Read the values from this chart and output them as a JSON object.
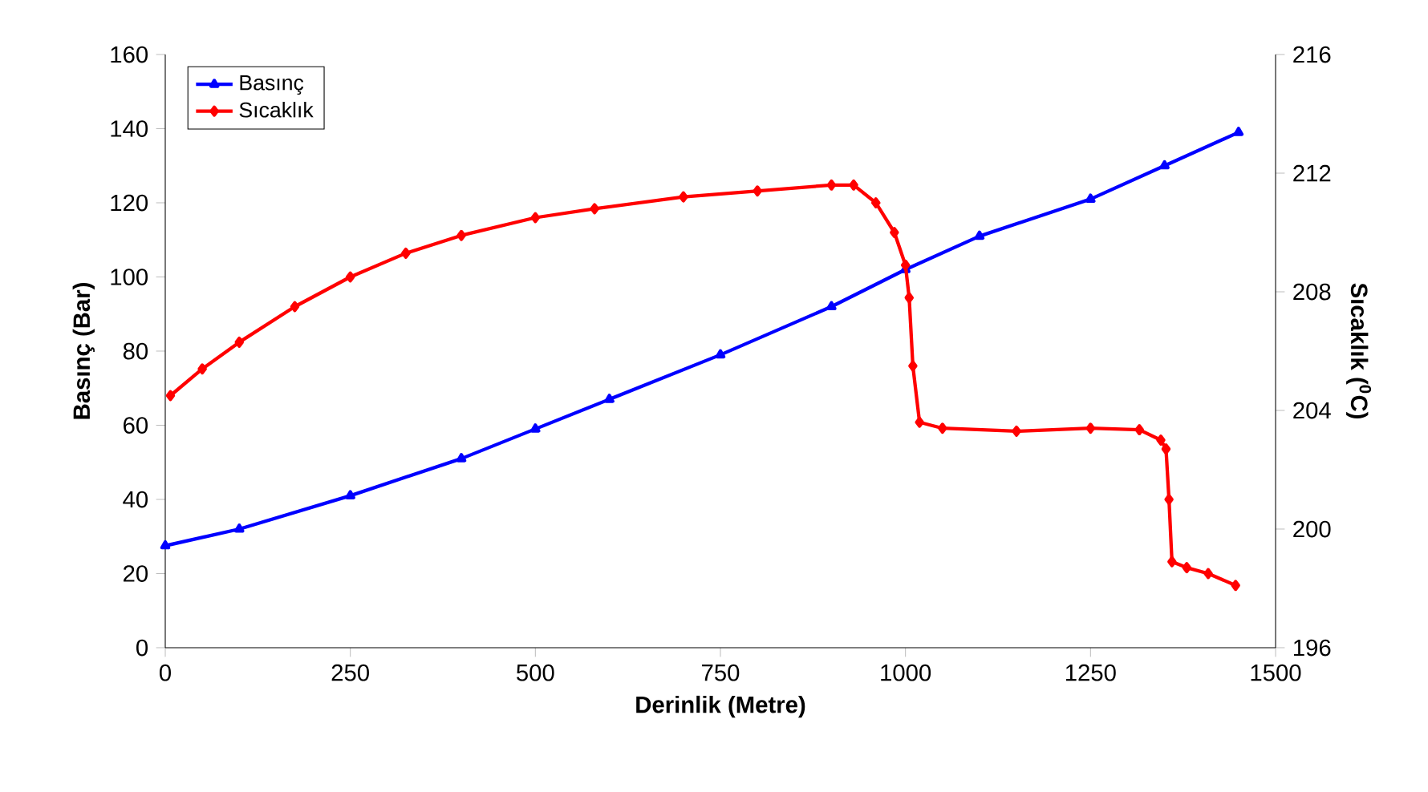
{
  "chart_data": {
    "type": "line",
    "xlabel": "Derinlik (Metre)",
    "ylabel": "Basınç (Bar)",
    "y2label": "Sıcaklık ($^{0}$C)",
    "xlim": [
      0,
      1500
    ],
    "xticks": [
      0,
      250,
      500,
      750,
      1000,
      1250,
      1500
    ],
    "ylim": [
      0,
      160
    ],
    "yticks": [
      0,
      20,
      40,
      60,
      80,
      100,
      120,
      140,
      160
    ],
    "y2lim": [
      196,
      216
    ],
    "y2ticks": [
      196,
      200,
      204,
      208,
      212,
      216
    ],
    "legend": "top left",
    "grid": false,
    "line_style": "solid",
    "series": [
      {
        "name": "Basınç",
        "color": "#0000ff",
        "marker": "triangle",
        "x": [
          0,
          100,
          250,
          400,
          500,
          600,
          750,
          900,
          1000,
          1100,
          1250,
          1350,
          1450
        ],
        "values": [
          27.5,
          32,
          41,
          51,
          59,
          67,
          79,
          92,
          102,
          111,
          121,
          130,
          139
        ]
      },
      {
        "name": "Sıcaklık",
        "color": "#ff0000",
        "marker": "diamond",
        "axis": "y2",
        "x": [
          7,
          50,
          100,
          175,
          250,
          325,
          400,
          500,
          580,
          700,
          800,
          900,
          930,
          960,
          985,
          1000,
          1005,
          1010,
          1019,
          1050,
          1150,
          1250,
          1316,
          1345,
          1352,
          1356,
          1360,
          1380,
          1409,
          1446
        ],
        "values": [
          204.5,
          205.4,
          206.3,
          207.5,
          208.5,
          209.3,
          209.9,
          210.5,
          210.8,
          211.2,
          211.4,
          211.6,
          211.6,
          211,
          210,
          208.9,
          207.8,
          205.5,
          203.6,
          203.4,
          203.3,
          203.4,
          203.35,
          203,
          202.7,
          201,
          198.9,
          198.7,
          198.5,
          198.1
        ]
      }
    ]
  }
}
